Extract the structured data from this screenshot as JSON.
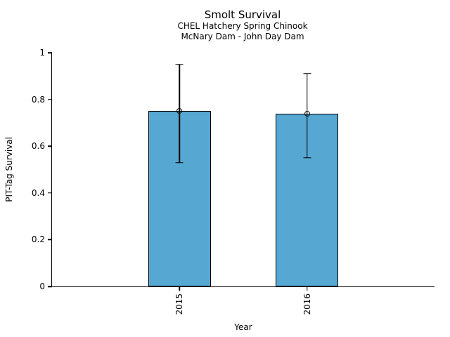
{
  "figure": {
    "title": "Smolt Survival",
    "subtitle1": "CHEL Hatchery Spring Chinook",
    "subtitle2": "McNary Dam - John Day Dam"
  },
  "chart_data": {
    "type": "bar",
    "title": "Smolt Survival",
    "subtitle": [
      "CHEL Hatchery Spring Chinook",
      "McNary Dam - John Day Dam"
    ],
    "categories": [
      "2015",
      "2016"
    ],
    "series": [
      {
        "name": "PIT-Tag Survival",
        "values": [
          0.75,
          0.74
        ],
        "error_low": [
          0.53,
          0.55
        ],
        "error_high": [
          0.95,
          0.91
        ]
      }
    ],
    "xlabel": "Year",
    "ylabel": "PIT-Tag Survival",
    "ylim": [
      0,
      1
    ],
    "yticks": [
      0,
      0.2,
      0.4,
      0.6,
      0.8,
      1
    ],
    "ytick_labels": [
      "0",
      "0.2",
      "0.4",
      "0.6",
      "0.8",
      "1"
    ],
    "grid": false,
    "legend_position": "none",
    "bar_color": "#56a7d1",
    "bar_edge_color": "#000000",
    "error_color": "#000000",
    "background_color": "#ffffff"
  }
}
